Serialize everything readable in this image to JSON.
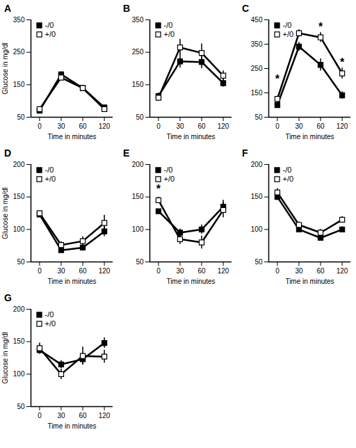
{
  "chart_data": [
    {
      "type": "line",
      "title": "A",
      "x_label": "Time in minutes",
      "y_label": "Glucose in mg/dl",
      "categories": [
        "0",
        "30",
        "60",
        "120"
      ],
      "series": [
        {
          "name": "-/0",
          "color": "#000000",
          "marker": "filled-square",
          "values": [
            70,
            182,
            140,
            80
          ],
          "errors": [
            6,
            8,
            8,
            7
          ]
        },
        {
          "name": "+/0",
          "color": "#000000",
          "marker": "open-square",
          "values": [
            75,
            172,
            140,
            75
          ],
          "errors": [
            6,
            8,
            8,
            7
          ]
        }
      ],
      "ylim": [
        50,
        350
      ],
      "yticks": [
        50,
        150,
        250,
        350
      ],
      "legend": "top-left"
    },
    {
      "type": "line",
      "title": "B",
      "x_label": "Time in minutes",
      "categories": [
        "0",
        "30",
        "60",
        "120"
      ],
      "series": [
        {
          "name": "-/0",
          "color": "#000000",
          "marker": "filled-square",
          "values": [
            115,
            222,
            220,
            155
          ],
          "errors": [
            10,
            20,
            20,
            12
          ]
        },
        {
          "name": "+/0",
          "color": "#000000",
          "marker": "open-square",
          "values": [
            110,
            265,
            248,
            178
          ],
          "errors": [
            10,
            25,
            28,
            15
          ]
        }
      ],
      "ylim": [
        50,
        350
      ],
      "yticks": [
        50,
        150,
        250,
        350
      ],
      "legend": "top-left"
    },
    {
      "type": "line",
      "title": "C",
      "x_label": "Time in minutes",
      "categories": [
        "0",
        "30",
        "60",
        "120"
      ],
      "series": [
        {
          "name": "-/0",
          "color": "#000000",
          "marker": "filled-square",
          "values": [
            100,
            340,
            265,
            140
          ],
          "errors": [
            10,
            18,
            25,
            15
          ]
        },
        {
          "name": "+/0",
          "color": "#000000",
          "marker": "open-square",
          "values": [
            125,
            395,
            378,
            230
          ],
          "errors": [
            12,
            15,
            20,
            22
          ]
        }
      ],
      "annotations": [
        {
          "x": "0",
          "y": 205,
          "text": "*"
        },
        {
          "x": "60",
          "y": 420,
          "text": "*"
        },
        {
          "x": "120",
          "y": 275,
          "text": "*"
        }
      ],
      "ylim": [
        50,
        450
      ],
      "yticks": [
        50,
        150,
        250,
        350,
        450
      ],
      "legend": "top-left"
    },
    {
      "type": "line",
      "title": "D",
      "x_label": "Time in minutes",
      "y_label": "Glucose in mg/dl",
      "categories": [
        "0",
        "30",
        "60",
        "120"
      ],
      "series": [
        {
          "name": "-/0",
          "color": "#000000",
          "marker": "filled-square",
          "values": [
            123,
            68,
            72,
            97
          ],
          "errors": [
            3,
            4,
            5,
            8
          ]
        },
        {
          "name": "+/0",
          "color": "#000000",
          "marker": "open-square",
          "values": [
            125,
            76,
            82,
            110
          ],
          "errors": [
            3,
            5,
            7,
            12
          ]
        }
      ],
      "ylim": [
        50,
        200
      ],
      "yticks": [
        50,
        100,
        150,
        200
      ],
      "legend": "top-left"
    },
    {
      "type": "line",
      "title": "E",
      "x_label": "Time in minutes",
      "categories": [
        "0",
        "30",
        "60",
        "120"
      ],
      "series": [
        {
          "name": "-/0",
          "color": "#000000",
          "marker": "filled-square",
          "values": [
            128,
            95,
            100,
            135
          ],
          "errors": [
            3,
            6,
            7,
            10
          ]
        },
        {
          "name": "+/0",
          "color": "#000000",
          "marker": "open-square",
          "values": [
            145,
            85,
            80,
            130
          ],
          "errors": [
            5,
            8,
            10,
            12
          ]
        }
      ],
      "annotations": [
        {
          "x": "0",
          "y": 162,
          "text": "*"
        }
      ],
      "ylim": [
        50,
        200
      ],
      "yticks": [
        50,
        100,
        150,
        200
      ],
      "legend": "top-left"
    },
    {
      "type": "line",
      "title": "F",
      "x_label": "Time in minutes",
      "categories": [
        "0",
        "30",
        "60",
        "120"
      ],
      "series": [
        {
          "name": "-/0",
          "color": "#000000",
          "marker": "filled-square",
          "values": [
            150,
            100,
            87,
            100
          ],
          "errors": [
            5,
            4,
            4,
            4
          ]
        },
        {
          "name": "+/0",
          "color": "#000000",
          "marker": "open-square",
          "values": [
            157,
            107,
            95,
            115
          ],
          "errors": [
            6,
            5,
            5,
            5
          ]
        }
      ],
      "ylim": [
        50,
        200
      ],
      "yticks": [
        50,
        100,
        150,
        200
      ],
      "legend": "top-left"
    },
    {
      "type": "line",
      "title": "G",
      "x_label": "Time in minutes",
      "y_label": "Glucose in mg/dl",
      "categories": [
        "0",
        "30",
        "60",
        "120"
      ],
      "series": [
        {
          "name": "-/0",
          "color": "#000000",
          "marker": "filled-square",
          "values": [
            137,
            115,
            123,
            148
          ],
          "errors": [
            6,
            6,
            8,
            8
          ]
        },
        {
          "name": "+/0",
          "color": "#000000",
          "marker": "open-square",
          "values": [
            140,
            100,
            128,
            127
          ],
          "errors": [
            8,
            8,
            14,
            10
          ]
        }
      ],
      "ylim": [
        50,
        200
      ],
      "yticks": [
        50,
        100,
        150,
        200
      ],
      "legend": "top-left"
    }
  ]
}
